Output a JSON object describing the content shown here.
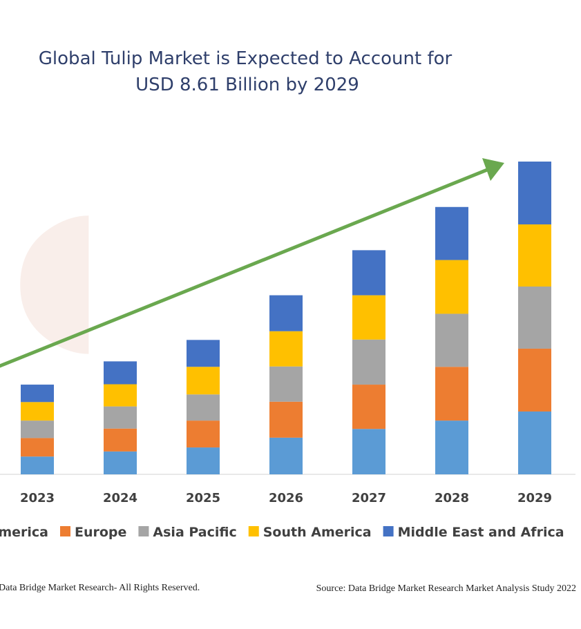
{
  "chart_data": {
    "type": "stacked_bar",
    "title": [
      "Global Tulip Market is Expected to Account for",
      "USD 8.61 Billion by 2029"
    ],
    "categories": [
      "2023",
      "2024",
      "2025",
      "2026",
      "2027",
      "2028",
      "2029"
    ],
    "series": [
      {
        "name": "North America",
        "color": "#5b9bd5",
        "values": [
          0.49,
          0.63,
          0.74,
          1.01,
          1.25,
          1.48,
          1.73
        ]
      },
      {
        "name": "Europe",
        "color": "#ed7d31",
        "values": [
          0.51,
          0.63,
          0.74,
          0.99,
          1.22,
          1.48,
          1.73
        ]
      },
      {
        "name": "Asia Pacific",
        "color": "#a5a5a5",
        "values": [
          0.48,
          0.61,
          0.72,
          0.97,
          1.24,
          1.46,
          1.71
        ]
      },
      {
        "name": "South America",
        "color": "#ffc000",
        "values": [
          0.51,
          0.61,
          0.76,
          0.97,
          1.22,
          1.48,
          1.71
        ]
      },
      {
        "name": "Middle East and Africa",
        "color": "#4472c4",
        "values": [
          0.48,
          0.63,
          0.74,
          0.99,
          1.24,
          1.46,
          1.73
        ]
      }
    ],
    "footer_left": "Data Bridge Market Research- All Rights Reserved.",
    "footer_right": "Source: Data Bridge Market Research Market Analysis Study 2022"
  }
}
